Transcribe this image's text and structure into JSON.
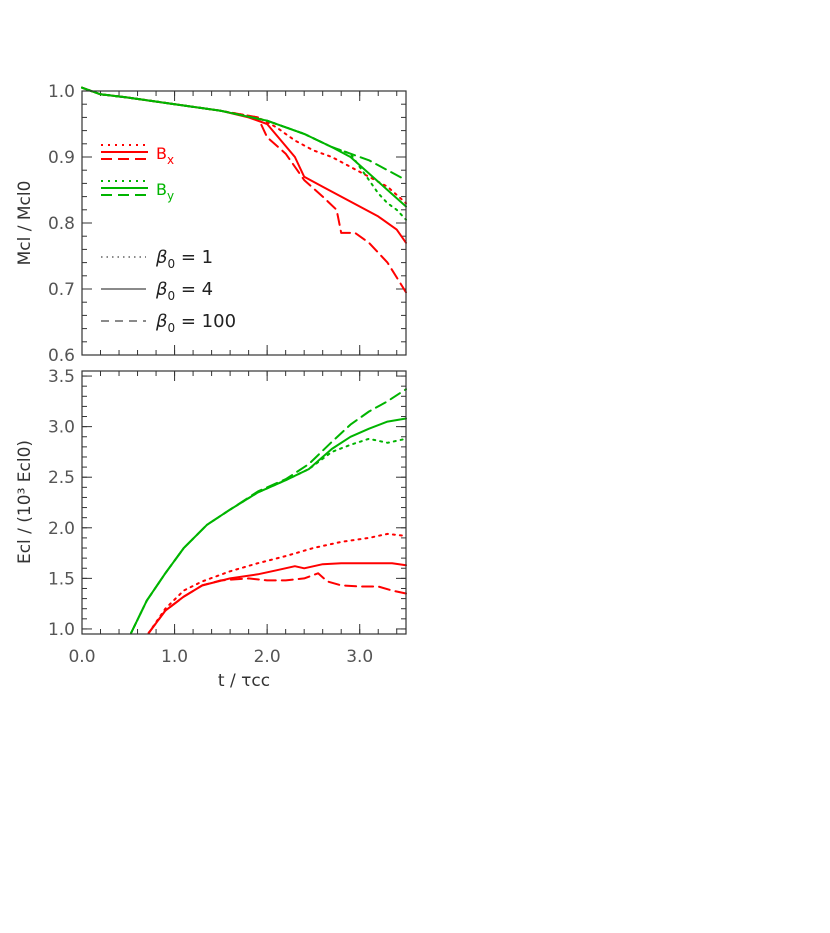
{
  "figure": {
    "x_axis_title": "t / τcc"
  },
  "colors": {
    "Bx": "#ff0000",
    "By": "#00b400",
    "axis": "#333333",
    "legend_gray": "#444444"
  },
  "line_styles": {
    "1": "dotted",
    "4": "solid",
    "100": "dashed"
  },
  "chart_data": [
    {
      "id": "mass",
      "type": "line",
      "ylabel": "Mcl / Mcl0",
      "xlim": [
        0.0,
        3.5
      ],
      "ylim": [
        0.6,
        1.0
      ],
      "xticks": [
        0.0,
        1.0,
        2.0,
        3.0
      ],
      "xtick_labels": [
        "0.0",
        "1.0",
        "2.0",
        "3.0"
      ],
      "yticks": [
        0.6,
        0.7,
        0.8,
        0.9,
        1.0
      ],
      "ytick_labels": [
        "0.6",
        "0.7",
        "0.8",
        "0.9",
        "1.0"
      ],
      "show_x_tick_labels": false,
      "legend": {
        "field_entries": [
          {
            "field": "Bx",
            "label": "Bx",
            "label_main": "B",
            "label_sub": "x"
          },
          {
            "field": "By",
            "label": "By",
            "label_main": "B",
            "label_sub": "y"
          }
        ],
        "beta_entries": [
          {
            "beta": "1",
            "style": "dotted",
            "label": "β0 = 1",
            "label_main": "β",
            "label_sub": "0",
            "label_rest": " = 1"
          },
          {
            "beta": "4",
            "style": "solid",
            "label": "β0 = 4",
            "label_main": "β",
            "label_sub": "0",
            "label_rest": " = 4"
          },
          {
            "beta": "100",
            "style": "dashed",
            "label": "β0 = 100",
            "label_main": "β",
            "label_sub": "0",
            "label_rest": " = 100"
          }
        ]
      },
      "series": [
        {
          "field": "Bx",
          "beta": "1",
          "x": [
            0.0,
            0.2,
            0.5,
            1.0,
            1.5,
            1.9,
            2.1,
            2.3,
            2.5,
            2.7,
            2.9,
            3.1,
            3.3,
            3.5
          ],
          "y": [
            1.005,
            0.995,
            0.99,
            0.98,
            0.97,
            0.96,
            0.945,
            0.925,
            0.91,
            0.9,
            0.885,
            0.87,
            0.855,
            0.83
          ]
        },
        {
          "field": "Bx",
          "beta": "4",
          "x": [
            0.0,
            0.2,
            0.5,
            1.0,
            1.5,
            1.8,
            2.0,
            2.15,
            2.3,
            2.4,
            2.6,
            2.8,
            3.0,
            3.2,
            3.4,
            3.5
          ],
          "y": [
            1.005,
            0.995,
            0.99,
            0.98,
            0.97,
            0.96,
            0.95,
            0.925,
            0.9,
            0.87,
            0.855,
            0.84,
            0.825,
            0.81,
            0.79,
            0.77
          ]
        },
        {
          "field": "Bx",
          "beta": "100",
          "x": [
            0.0,
            0.2,
            0.5,
            1.0,
            1.5,
            1.9,
            2.0,
            2.2,
            2.4,
            2.6,
            2.75,
            2.8,
            2.95,
            3.1,
            3.3,
            3.5
          ],
          "y": [
            1.005,
            0.995,
            0.99,
            0.98,
            0.97,
            0.96,
            0.93,
            0.905,
            0.865,
            0.84,
            0.82,
            0.785,
            0.785,
            0.77,
            0.74,
            0.695
          ]
        },
        {
          "field": "By",
          "beta": "1",
          "x": [
            0.0,
            0.2,
            0.5,
            1.0,
            1.5,
            2.0,
            2.4,
            2.7,
            2.9,
            3.0,
            3.1,
            3.2,
            3.3,
            3.4,
            3.5
          ],
          "y": [
            1.005,
            0.995,
            0.99,
            0.98,
            0.97,
            0.955,
            0.935,
            0.915,
            0.905,
            0.885,
            0.865,
            0.845,
            0.83,
            0.82,
            0.805
          ]
        },
        {
          "field": "By",
          "beta": "4",
          "x": [
            0.0,
            0.2,
            0.5,
            1.0,
            1.5,
            2.0,
            2.4,
            2.7,
            2.9,
            3.1,
            3.3,
            3.5
          ],
          "y": [
            1.005,
            0.995,
            0.99,
            0.98,
            0.97,
            0.955,
            0.935,
            0.915,
            0.9,
            0.875,
            0.85,
            0.825
          ]
        },
        {
          "field": "By",
          "beta": "100",
          "x": [
            0.0,
            0.2,
            0.5,
            1.0,
            1.5,
            2.0,
            2.4,
            2.7,
            2.9,
            3.1,
            3.3,
            3.5
          ],
          "y": [
            1.005,
            0.995,
            0.99,
            0.98,
            0.97,
            0.955,
            0.935,
            0.915,
            0.905,
            0.895,
            0.88,
            0.865
          ]
        }
      ]
    },
    {
      "id": "energy",
      "type": "line",
      "ylabel": "Ecl / (10³ Ecl0)",
      "xlim": [
        0.0,
        3.5
      ],
      "ylim": [
        0.95,
        3.55
      ],
      "xticks": [
        0.0,
        1.0,
        2.0,
        3.0
      ],
      "xtick_labels": [
        "0.0",
        "1.0",
        "2.0",
        "3.0"
      ],
      "yticks": [
        1.0,
        1.5,
        2.0,
        2.5,
        3.0,
        3.5
      ],
      "ytick_labels": [
        "1.0",
        "1.5",
        "2.0",
        "2.5",
        "3.0",
        "3.5"
      ],
      "show_x_tick_labels": true,
      "series": [
        {
          "field": "By",
          "beta": "1",
          "x": [
            0.53,
            0.7,
            0.9,
            1.1,
            1.35,
            1.6,
            1.9,
            2.2,
            2.45,
            2.7,
            2.9,
            3.1,
            3.3,
            3.5
          ],
          "y": [
            0.96,
            1.28,
            1.55,
            1.8,
            2.03,
            2.18,
            2.35,
            2.47,
            2.58,
            2.75,
            2.82,
            2.88,
            2.84,
            2.88
          ]
        },
        {
          "field": "By",
          "beta": "4",
          "x": [
            0.53,
            0.7,
            0.9,
            1.1,
            1.35,
            1.6,
            1.9,
            2.2,
            2.45,
            2.7,
            2.9,
            3.1,
            3.3,
            3.5
          ],
          "y": [
            0.96,
            1.28,
            1.55,
            1.8,
            2.03,
            2.18,
            2.35,
            2.47,
            2.58,
            2.78,
            2.9,
            2.98,
            3.05,
            3.08
          ]
        },
        {
          "field": "By",
          "beta": "100",
          "x": [
            0.53,
            0.7,
            0.9,
            1.1,
            1.35,
            1.6,
            1.9,
            2.2,
            2.45,
            2.7,
            2.9,
            3.1,
            3.3,
            3.5
          ],
          "y": [
            0.96,
            1.28,
            1.55,
            1.8,
            2.03,
            2.18,
            2.36,
            2.48,
            2.63,
            2.85,
            3.02,
            3.15,
            3.25,
            3.37
          ]
        },
        {
          "field": "Bx",
          "beta": "1",
          "x": [
            0.72,
            0.9,
            1.1,
            1.3,
            1.6,
            1.9,
            2.2,
            2.5,
            2.8,
            3.1,
            3.3,
            3.5
          ],
          "y": [
            0.96,
            1.2,
            1.38,
            1.47,
            1.57,
            1.65,
            1.72,
            1.8,
            1.86,
            1.9,
            1.94,
            1.92
          ]
        },
        {
          "field": "Bx",
          "beta": "4",
          "x": [
            0.72,
            0.9,
            1.1,
            1.3,
            1.6,
            1.9,
            2.1,
            2.3,
            2.4,
            2.6,
            2.8,
            3.0,
            3.2,
            3.35,
            3.5
          ],
          "y": [
            0.96,
            1.18,
            1.32,
            1.43,
            1.5,
            1.54,
            1.58,
            1.62,
            1.6,
            1.64,
            1.65,
            1.65,
            1.65,
            1.65,
            1.63
          ]
        },
        {
          "field": "Bx",
          "beta": "100",
          "x": [
            0.72,
            0.9,
            1.1,
            1.3,
            1.5,
            1.8,
            2.0,
            2.2,
            2.4,
            2.55,
            2.65,
            2.8,
            3.0,
            3.2,
            3.35,
            3.5
          ],
          "y": [
            0.96,
            1.18,
            1.32,
            1.43,
            1.48,
            1.5,
            1.48,
            1.48,
            1.5,
            1.55,
            1.47,
            1.43,
            1.42,
            1.42,
            1.38,
            1.35
          ]
        }
      ]
    }
  ]
}
